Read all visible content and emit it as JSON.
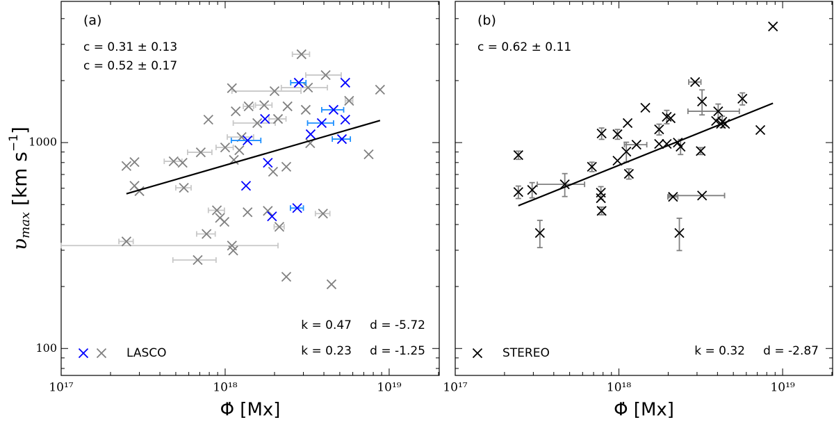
{
  "chart_data": [
    {
      "type": "scatter",
      "panel_label": "(a)",
      "log_x": true,
      "log_y": true,
      "xlim": [
        1e+17,
        2.02e+19
      ],
      "ylim": [
        74,
        4850
      ],
      "xticks": [
        {
          "value": 1e+17,
          "label": "10¹⁷"
        },
        {
          "value": 1e+18,
          "label": "10¹⁸"
        },
        {
          "value": 1e+19,
          "label": "10¹⁹"
        }
      ],
      "yticks": [
        100,
        1000
      ],
      "show_ytick_labels": true,
      "xlabel": "Φ̇ [Mx]",
      "ylabel": {
        "symbol": "υ",
        "subscript": "max",
        "unit": " [km s",
        "exponent": "−1",
        "close": "]"
      },
      "series": [
        {
          "color": "#808080",
          "error_color": "#c8c8c8",
          "x": [
            2.5e+17,
            2.8e+17,
            2.8e+17,
            3e+17,
            2.5e+17,
            4.85e+17,
            5.5e+17,
            5.6e+17,
            7.1e+17,
            7.9e+17,
            7.7e+17,
            6.8e+17,
            8.9e+17,
            9.3e+17,
            9.9e+17,
            1e+18,
            1.1e+18,
            1.13e+18,
            1.16e+18,
            1.22e+18,
            1.26e+18,
            1.1e+18,
            1.12e+18,
            1.37e+18,
            1.39e+18,
            1.57e+18,
            1.73e+18,
            1.82e+18,
            1.96e+18,
            2e+18,
            2.1e+18,
            2.14e+18,
            2.36e+18,
            2.4e+18,
            2.36e+18,
            2.92e+18,
            3.1e+18,
            3.2e+18,
            3.3e+18,
            4.1e+18,
            3.95e+18,
            4.45e+18,
            5.7e+18,
            7.5e+18,
            8.8e+18
          ],
          "values": [
            770,
            804,
            617,
            581,
            331,
            811,
            798,
            603,
            897,
            1292,
            360,
            269,
            469,
            431,
            412,
            947,
            1838,
            824,
            1419,
            918,
            1064,
            316,
            299,
            459,
            1500,
            1244,
            1520,
            466,
            722,
            1778,
            1303,
            390,
            763,
            1500,
            223,
            2685,
            1443,
            1849,
            993,
            2128,
            452,
            205,
            1596,
            877,
            1807
          ],
          "xerr": [
            null,
            null,
            null,
            null,
            2.5e+16,
            6e+16,
            null,
            6e+16,
            1.2e+17,
            null,
            1e+17,
            2e+17,
            1e+17,
            null,
            null,
            1.2e+17,
            null,
            null,
            null,
            null,
            2.3e+17,
            1e+18,
            null,
            null,
            1e+17,
            4.5e+17,
            2e+17,
            null,
            null,
            9e+17,
            2.5e+17,
            1.5e+17,
            null,
            null,
            null,
            3.5e+17,
            null,
            1e+18,
            null,
            1e+18,
            4e+17,
            null,
            3e+17,
            null,
            null
          ]
        },
        {
          "color": "#0000ff",
          "error_color": "#1e90ff",
          "x": [
            2.81e+18,
            5.4e+18,
            4.58e+18,
            5.4e+18,
            3.88e+18,
            1.75e+18,
            3.32e+18,
            1.37e+18,
            5.15e+18,
            1.82e+18,
            1.34e+18,
            2.75e+18,
            1.93e+18
          ],
          "values": [
            1954,
            1954,
            1443,
            1292,
            1244,
            1303,
            1098,
            1024,
            1040,
            798,
            617,
            481,
            438
          ],
          "xerr": [
            3e+17,
            null,
            7e+17,
            null,
            7e+17,
            null,
            null,
            2.8e+17,
            6.5e+17,
            null,
            null,
            2.5e+17,
            null
          ]
        }
      ],
      "fit": {
        "color": "#000000",
        "label_color": "#808080",
        "k": {
          "value": 0.23,
          "label": "k = 0.23"
        },
        "d": {
          "value": -1.25,
          "label": "d = -1.25"
        }
      },
      "annotations": [
        {
          "text": "c = 0.31 ± 0.13",
          "color": "#000000"
        },
        {
          "text": "c = 0.52 ± 0.17",
          "color": "#0000ff"
        },
        {
          "text": "k = 0.47",
          "color": "#0000ff"
        },
        {
          "text": "d = -5.72",
          "color": "#0000ff"
        }
      ],
      "legend": {
        "label": "LASCO",
        "loc": "lower left"
      }
    },
    {
      "type": "scatter",
      "panel_label": "(b)",
      "log_x": true,
      "log_y": true,
      "xlim": [
        1e+17,
        2.02e+19
      ],
      "ylim": [
        74,
        4850
      ],
      "xticks": [
        {
          "value": 1e+17,
          "label": "10¹⁷"
        },
        {
          "value": 1e+18,
          "label": "10¹⁸"
        },
        {
          "value": 1e+19,
          "label": "10¹⁹"
        }
      ],
      "yticks": [
        100,
        1000
      ],
      "show_ytick_labels": false,
      "xlabel": "Φ̇ [Mx]",
      "series": [
        {
          "color": "#000000",
          "error_color": "#808080",
          "x": [
            2.43e+17,
            2.43e+17,
            2.95e+17,
            3.29e+17,
            4.67e+17,
            6.84e+17,
            7.84e+17,
            7.76e+17,
            7.76e+17,
            7.84e+17,
            9.8e+17,
            9.8e+17,
            1.11e+18,
            1.15e+18,
            1.13e+18,
            1.28e+18,
            1.45e+18,
            1.76e+18,
            1.76e+18,
            1.96e+18,
            2.07e+18,
            1.96e+18,
            2.14e+18,
            2.29e+18,
            2.38e+18,
            2.34e+18,
            2.92e+18,
            3.16e+18,
            3.22e+18,
            3.22e+18,
            4.04e+18,
            3.92e+18,
            4.28e+18,
            4.45e+18,
            4.2e+18,
            5.68e+18,
            7.31e+18,
            8.73e+18
          ],
          "values": [
            869,
            575,
            589,
            364,
            627,
            763,
            1107,
            571,
            537,
            466,
            817,
            1098,
            904,
            705,
            1244,
            977,
            1476,
            985,
            1159,
            1334,
            1313,
            985,
            545,
            1000,
            955,
            364,
            1968,
            910,
            1583,
            553,
            1419,
            1273,
            1262,
            1233,
            1233,
            1633,
            1151,
            3664
          ],
          "xerr": [
            null,
            null,
            null,
            null,
            1.5e+17,
            null,
            null,
            null,
            null,
            null,
            null,
            null,
            null,
            null,
            null,
            2e+17,
            null,
            null,
            null,
            null,
            null,
            null,
            1.5e+17,
            null,
            null,
            null,
            2.5e+17,
            null,
            null,
            1.2e+18,
            1.4e+18,
            null,
            null,
            null,
            null,
            null,
            null,
            null
          ],
          "yerr": [
            40,
            40,
            50,
            55,
            80,
            40,
            70,
            40,
            null,
            20,
            null,
            60,
            100,
            40,
            null,
            null,
            null,
            null,
            70,
            100,
            null,
            null,
            null,
            null,
            80,
            65,
            null,
            35,
            220,
            null,
            120,
            null,
            80,
            null,
            null,
            110,
            null,
            null
          ]
        }
      ],
      "fit": {
        "color": "#000000",
        "label_color": "#808080",
        "k": {
          "value": 0.32,
          "label": "k = 0.32"
        },
        "d": {
          "value": -2.87,
          "label": "d = -2.87"
        }
      },
      "annotations": [
        {
          "text": "c = 0.62 ± 0.11",
          "color": "#000000"
        }
      ],
      "legend": {
        "label": "STEREO",
        "loc": "lower left"
      }
    }
  ]
}
